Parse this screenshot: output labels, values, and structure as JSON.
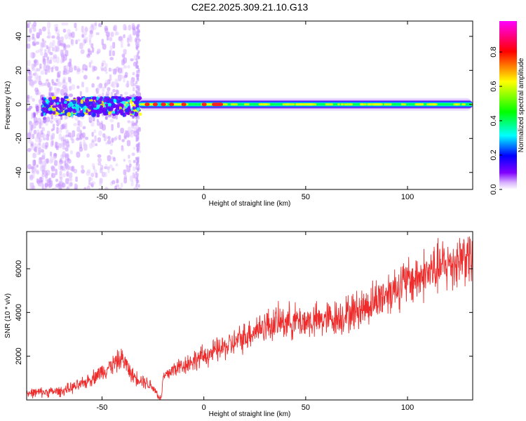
{
  "title": "C2E2.2025.309.21.10.G13",
  "chart_data": [
    {
      "type": "heatmap",
      "xlabel": "Height of straight line (km)",
      "ylabel": "Frequency (Hz)",
      "xlim": [
        -87,
        132
      ],
      "ylim": [
        -50,
        49
      ],
      "xticks": [
        -50,
        0,
        50,
        100
      ],
      "yticks": [
        -40,
        -20,
        0,
        20,
        40
      ],
      "colorbar": {
        "label": "Normalized spectral amplitude",
        "range": [
          0,
          0.98
        ],
        "ticks": [
          0.0,
          0.2,
          0.4,
          0.6,
          0.8
        ],
        "colors": [
          "#ffffff",
          "#8000ff",
          "#0000ff",
          "#00ffff",
          "#00ff00",
          "#ffff00",
          "#ff0000",
          "#ff00ff"
        ]
      },
      "features": {
        "noisy_region_km": [
          -87,
          -32
        ],
        "stable_band_km": [
          -32,
          132
        ],
        "band_center_hz": 0
      }
    },
    {
      "type": "line",
      "xlabel": "Height of straight line (km)",
      "ylabel": "SNR (10 * v/v)",
      "xlim": [
        -87,
        132
      ],
      "ylim": [
        0,
        7700
      ],
      "xticks": [
        -50,
        0,
        50,
        100
      ],
      "yticks": [
        2000,
        4000,
        6000
      ],
      "color": "#ee2c2c",
      "series": [
        {
          "x": [
            -87,
            -80,
            -70,
            -60,
            -55,
            -50,
            -45,
            -40,
            -35,
            -30,
            -25,
            -21,
            -20,
            -15,
            -10,
            -5,
            0,
            5,
            10,
            15,
            20,
            25,
            30,
            35,
            40,
            45,
            50,
            55,
            60,
            65,
            70,
            75,
            80,
            85,
            90,
            95,
            100,
            105,
            110,
            115,
            120,
            125,
            128,
            132
          ],
          "y": [
            300,
            350,
            400,
            700,
            1000,
            1300,
            1600,
            1900,
            1100,
            900,
            600,
            0,
            1000,
            1400,
            1600,
            1800,
            2000,
            2200,
            2400,
            2600,
            2900,
            3200,
            3400,
            3500,
            3600,
            3600,
            3600,
            3600,
            3700,
            3750,
            3900,
            4100,
            4300,
            4600,
            4900,
            5200,
            5400,
            5600,
            5800,
            6000,
            6200,
            6400,
            6700,
            6300
          ]
        }
      ]
    }
  ]
}
